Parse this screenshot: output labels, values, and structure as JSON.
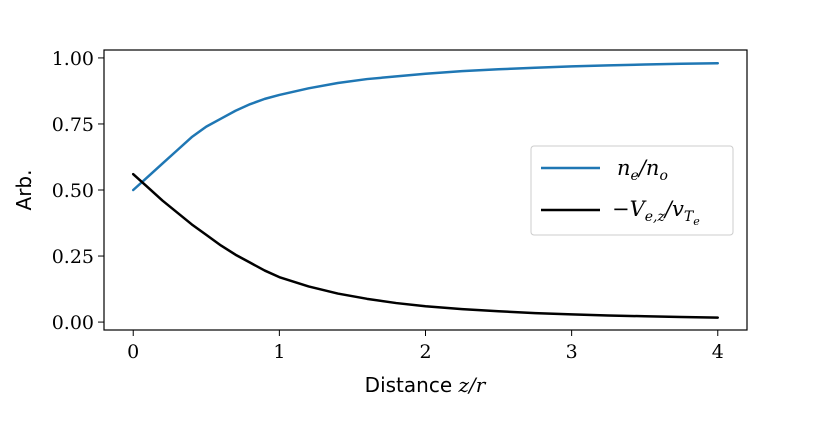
{
  "chart_data": {
    "type": "line",
    "xlabel_text": "Distance ",
    "xlabel_math": "z/r",
    "ylabel": "Arb.",
    "xlim": [
      -0.2,
      4.2
    ],
    "ylim": [
      -0.03,
      1.03
    ],
    "xticks": [
      0,
      1,
      2,
      3,
      4
    ],
    "xtick_labels": [
      "0",
      "1",
      "2",
      "3",
      "4"
    ],
    "yticks": [
      0.0,
      0.25,
      0.5,
      0.75,
      1.0
    ],
    "ytick_labels": [
      "0.00",
      "0.25",
      "0.50",
      "0.75",
      "1.00"
    ],
    "grid": false,
    "legend_position": "center-right",
    "x": [
      0,
      0.1,
      0.2,
      0.3,
      0.4,
      0.5,
      0.6,
      0.7,
      0.8,
      0.9,
      1.0,
      1.2,
      1.4,
      1.6,
      1.8,
      2.0,
      2.25,
      2.5,
      2.75,
      3.0,
      3.25,
      3.5,
      3.75,
      4.0
    ],
    "series": [
      {
        "name": "n_e/n_o",
        "legend_main": "n",
        "legend_sub1": "e",
        "legend_mid": "/n",
        "legend_sub2": "o",
        "color": "#1f77b4",
        "values": [
          0.5,
          0.55,
          0.6,
          0.65,
          0.7,
          0.74,
          0.77,
          0.8,
          0.825,
          0.845,
          0.86,
          0.885,
          0.905,
          0.92,
          0.93,
          0.94,
          0.95,
          0.957,
          0.963,
          0.968,
          0.972,
          0.975,
          0.978,
          0.98
        ]
      },
      {
        "name": "-V_{e,z}/v_{T_e}",
        "legend_main": "−V",
        "legend_sub1": "e,z",
        "legend_mid": "/v",
        "legend_sub2": "T",
        "legend_subsub": "e",
        "color": "#000000",
        "values": [
          0.56,
          0.51,
          0.46,
          0.415,
          0.37,
          0.33,
          0.29,
          0.255,
          0.225,
          0.195,
          0.17,
          0.135,
          0.108,
          0.088,
          0.072,
          0.06,
          0.049,
          0.041,
          0.034,
          0.029,
          0.025,
          0.022,
          0.019,
          0.017
        ]
      }
    ]
  }
}
